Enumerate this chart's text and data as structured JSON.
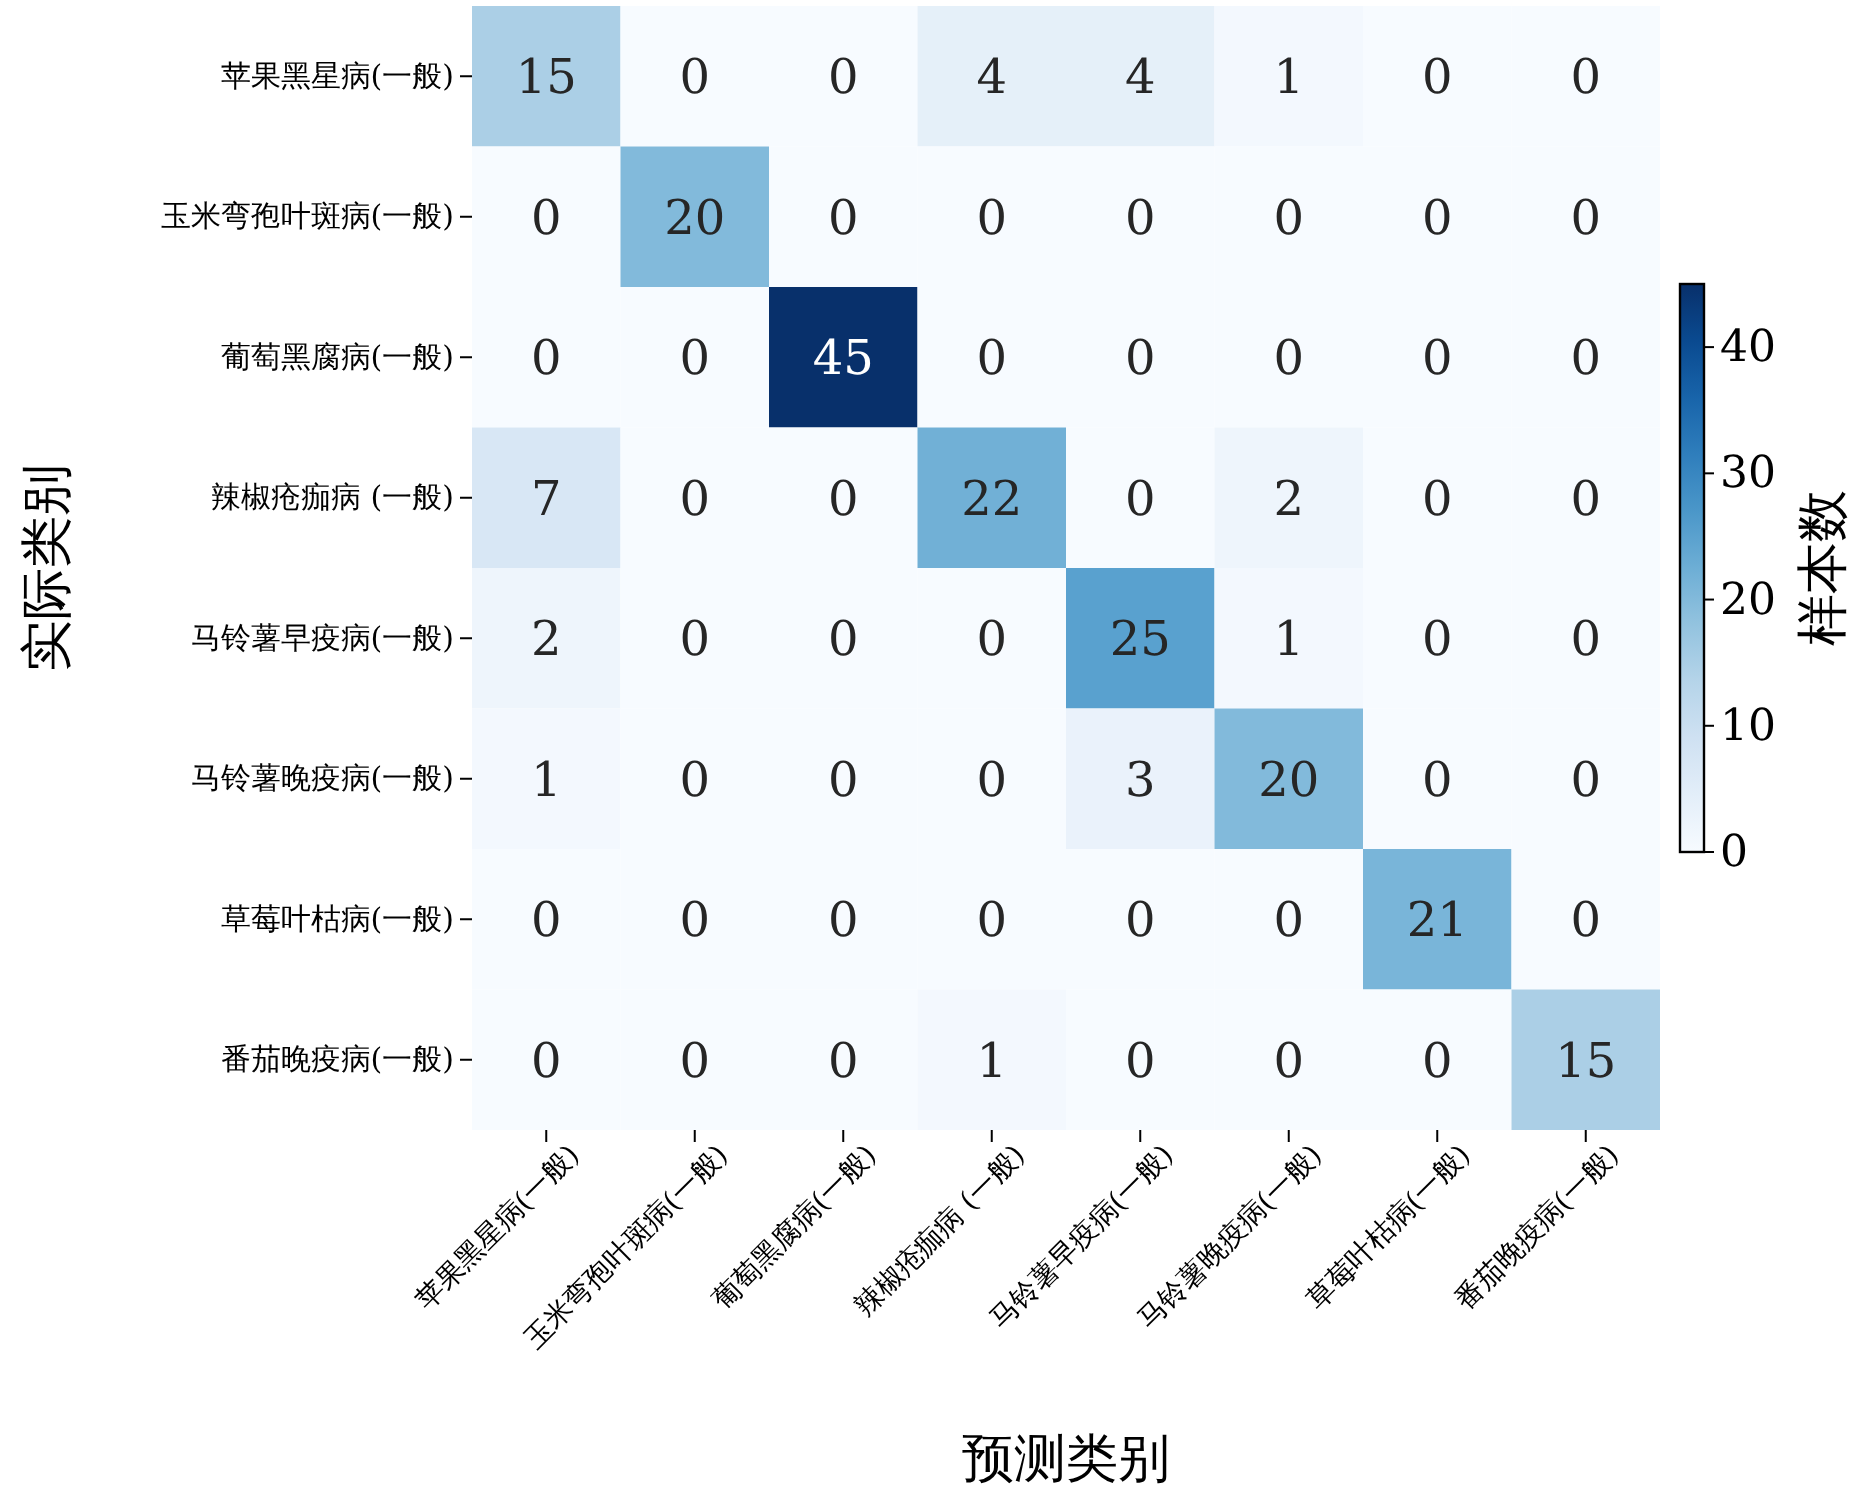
{
  "chart_data": {
    "type": "heatmap",
    "xlabel": "预测类别",
    "ylabel": "实际类别",
    "clabel": "样本数",
    "categories": [
      "苹果黑星病(一般)",
      "玉米弯孢叶斑病(一般)",
      "葡萄黑腐病(一般)",
      "辣椒疮痂病 (一般)",
      "马铃薯早疫病(一般)",
      "马铃薯晚疫病(一般)",
      "草莓叶枯病(一般)",
      "番茄晚疫病(一般)"
    ],
    "y_categories": [
      "苹果黑星病(一般)",
      "玉米弯孢叶斑病(一般)",
      "葡萄黑腐病(一般)",
      "辣椒疮痂病 (一般)",
      "马铃薯早疫病(一般)",
      "马铃薯晚疫病(一般)",
      "草莓叶枯病(一般)",
      "番茄晚疫病(一般)"
    ],
    "cells": [
      [
        15,
        0,
        0,
        4,
        4,
        1,
        0,
        0
      ],
      [
        0,
        20,
        0,
        0,
        0,
        0,
        0,
        0
      ],
      [
        0,
        0,
        45,
        0,
        0,
        0,
        0,
        0
      ],
      [
        7,
        0,
        0,
        22,
        0,
        2,
        0,
        0
      ],
      [
        2,
        0,
        0,
        0,
        25,
        1,
        0,
        0
      ],
      [
        1,
        0,
        0,
        0,
        3,
        20,
        0,
        0
      ],
      [
        0,
        0,
        0,
        0,
        0,
        0,
        21,
        0
      ],
      [
        0,
        0,
        0,
        1,
        0,
        0,
        0,
        15
      ]
    ],
    "clim": [
      0,
      45
    ],
    "cticks": [
      0,
      10,
      20,
      30,
      40
    ],
    "data_labels": true
  }
}
